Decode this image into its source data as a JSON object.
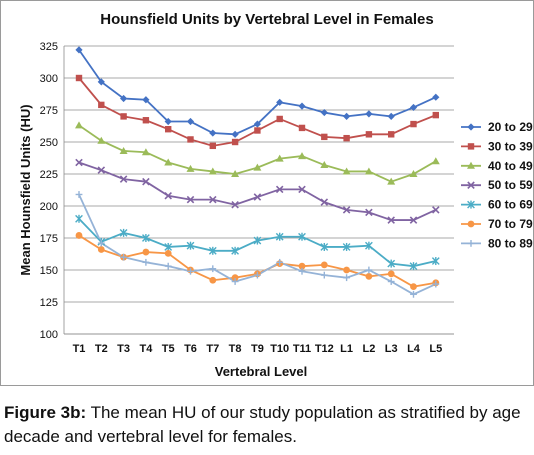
{
  "chart_data": {
    "type": "line",
    "title": "Hounsfield Units by Vertebral Level in Females",
    "xlabel": "Vertebral Level",
    "ylabel": "Mean Hounsfield Units (HU)",
    "ylim": [
      100,
      325
    ],
    "yticks": [
      100,
      125,
      150,
      175,
      200,
      225,
      250,
      275,
      300,
      325
    ],
    "grid": "horizontal",
    "legend": "right",
    "categories": [
      "T1",
      "T2",
      "T3",
      "T4",
      "T5",
      "T6",
      "T7",
      "T8",
      "T9",
      "T10",
      "T11",
      "T12",
      "L1",
      "L2",
      "L3",
      "L4",
      "L5"
    ],
    "series": [
      {
        "name": "20 to 29",
        "color": "#4472C4",
        "marker": "diamond",
        "values": [
          322,
          297,
          284,
          283,
          266,
          266,
          257,
          256,
          264,
          281,
          278,
          273,
          270,
          272,
          270,
          277,
          285
        ]
      },
      {
        "name": "30 to 39",
        "color": "#C0504D",
        "marker": "square",
        "values": [
          300,
          279,
          270,
          267,
          260,
          252,
          247,
          250,
          259,
          268,
          261,
          254,
          253,
          256,
          256,
          264,
          271
        ]
      },
      {
        "name": "40 to 49",
        "color": "#9BBB59",
        "marker": "triangle",
        "values": [
          263,
          251,
          243,
          242,
          234,
          229,
          227,
          225,
          230,
          237,
          239,
          232,
          227,
          227,
          219,
          225,
          235
        ]
      },
      {
        "name": "50 to 59",
        "color": "#8064A2",
        "marker": "x",
        "values": [
          234,
          228,
          221,
          219,
          208,
          205,
          205,
          201,
          207,
          213,
          213,
          203,
          197,
          195,
          189,
          189,
          197
        ]
      },
      {
        "name": "60 to 69",
        "color": "#4BACC6",
        "marker": "star",
        "values": [
          190,
          172,
          179,
          175,
          168,
          169,
          165,
          165,
          173,
          176,
          176,
          168,
          168,
          169,
          155,
          153,
          157
        ]
      },
      {
        "name": "70 to 79",
        "color": "#F79646",
        "marker": "circle",
        "values": [
          177,
          166,
          160,
          164,
          163,
          150,
          142,
          144,
          147,
          155,
          153,
          154,
          150,
          145,
          147,
          137,
          140
        ]
      },
      {
        "name": "80 to 89",
        "color": "#95B3D7",
        "marker": "plus",
        "values": [
          209,
          171,
          160,
          156,
          153,
          149,
          151,
          141,
          146,
          156,
          149,
          146,
          144,
          150,
          141,
          131,
          139
        ]
      }
    ]
  },
  "caption": {
    "label": "Figure 3b:",
    "text": "The mean HU of our study population as stratified by age decade and vertebral level for females."
  }
}
